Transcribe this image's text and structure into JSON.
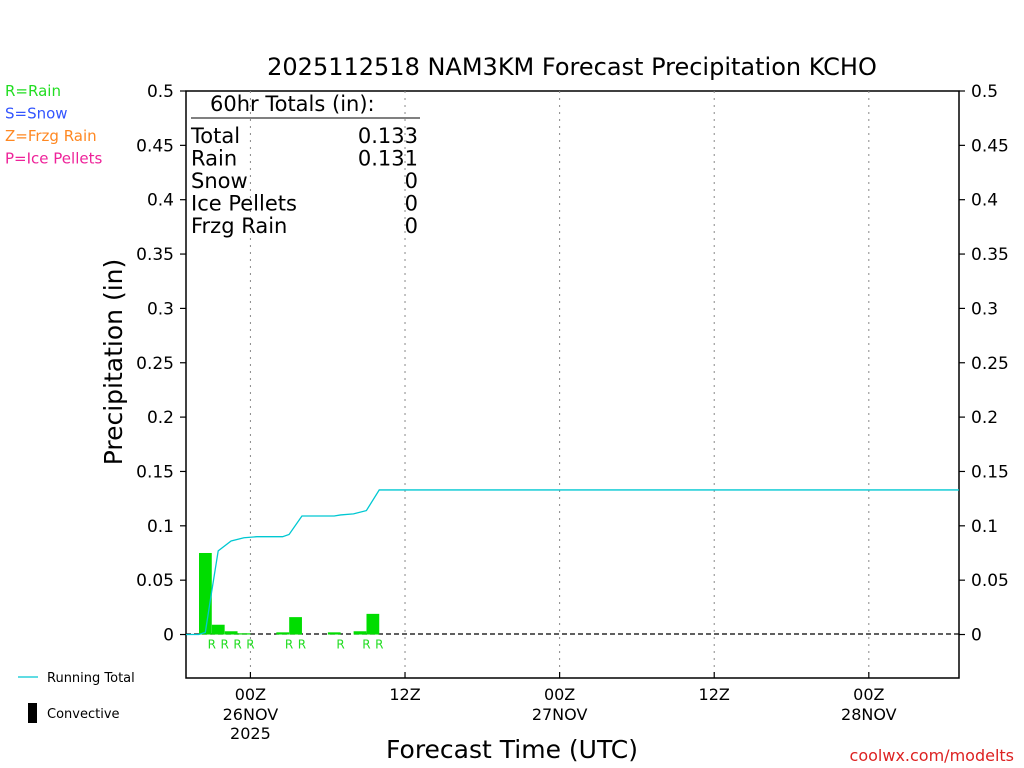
{
  "chart_data": {
    "type": "bar",
    "title": "2025112518 NAM3KM Forecast Precipitation KCHO",
    "xlabel": "Forecast Time (UTC)",
    "ylabel": "Precipitation (in)",
    "ylim": [
      -0.04,
      0.5
    ],
    "xlim_hours": [
      -5.0,
      55.0
    ],
    "yticks": [
      {
        "value": 0.5,
        "label": "0.5"
      },
      {
        "value": 0.45,
        "label": "0.45"
      },
      {
        "value": 0.4,
        "label": "0.4"
      },
      {
        "value": 0.35,
        "label": "0.35"
      },
      {
        "value": 0.3,
        "label": "0.3"
      },
      {
        "value": 0.25,
        "label": "0.25"
      },
      {
        "value": 0.2,
        "label": "0.2"
      },
      {
        "value": 0.15,
        "label": "0.15"
      },
      {
        "value": 0.1,
        "label": "0.1"
      },
      {
        "value": 0.05,
        "label": "0.05"
      },
      {
        "value": 0,
        "label": "0"
      }
    ],
    "xticks": [
      {
        "hour": 0,
        "label": "00Z",
        "date": "26NOV",
        "year": "2025"
      },
      {
        "hour": 12,
        "label": "12Z",
        "date": "",
        "year": ""
      },
      {
        "hour": 24,
        "label": "00Z",
        "date": "27NOV",
        "year": ""
      },
      {
        "hour": 36,
        "label": "12Z",
        "date": "",
        "year": ""
      },
      {
        "hour": 48,
        "label": "00Z",
        "date": "28NOV",
        "year": ""
      }
    ],
    "bars": [
      {
        "hour": -3,
        "value": 0.075,
        "type_label": "R"
      },
      {
        "hour": -2,
        "value": 0.009,
        "type_label": "R"
      },
      {
        "hour": -1,
        "value": 0.003,
        "type_label": "R"
      },
      {
        "hour": 0,
        "value": 0.0005,
        "type_label": "R"
      },
      {
        "hour": 3,
        "value": 0.002,
        "type_label": "R"
      },
      {
        "hour": 4,
        "value": 0.016,
        "type_label": "R"
      },
      {
        "hour": 7,
        "value": 0.002,
        "type_label": "R"
      },
      {
        "hour": 9,
        "value": 0.003,
        "type_label": "R"
      },
      {
        "hour": 10,
        "value": 0.019,
        "type_label": "R"
      }
    ],
    "running_total": {
      "name": "Running Total",
      "color": "#00c8d2",
      "points": [
        [
          -5,
          0
        ],
        [
          -4,
          0.0
        ],
        [
          -3.5,
          0.002
        ],
        [
          -3,
          0.04
        ],
        [
          -2.5,
          0.077
        ],
        [
          -1.5,
          0.086
        ],
        [
          -0.5,
          0.089
        ],
        [
          0.5,
          0.09
        ],
        [
          1.5,
          0.09
        ],
        [
          2.5,
          0.09
        ],
        [
          3,
          0.092
        ],
        [
          4,
          0.109
        ],
        [
          6.5,
          0.109
        ],
        [
          7,
          0.11
        ],
        [
          8,
          0.111
        ],
        [
          9,
          0.114
        ],
        [
          10,
          0.133
        ],
        [
          55,
          0.133
        ]
      ]
    },
    "totals_box": {
      "header": "60hr Totals (in):",
      "rows": [
        {
          "label": "Total",
          "value": "0.133"
        },
        {
          "label": "Rain",
          "value": "0.131"
        },
        {
          "label": "Snow",
          "value": "0"
        },
        {
          "label": "Ice Pellets",
          "value": "0"
        },
        {
          "label": "Frzg Rain",
          "value": "0"
        }
      ]
    },
    "precip_legend": [
      {
        "text": "R=Rain",
        "color": "#22dd22"
      },
      {
        "text": "S=Snow",
        "color": "#3355ff"
      },
      {
        "text": "Z=Frzg Rain",
        "color": "#ff8822"
      },
      {
        "text": "P=Ice Pellets",
        "color": "#ee2299"
      }
    ],
    "bottom_legend": [
      {
        "text": "Running Total",
        "color": "#00c8d2"
      },
      {
        "text": "Convective",
        "color": "#000000"
      }
    ],
    "bar_color": "#00dd00",
    "footer": "coolwx.com/modelts",
    "footer_color": "#dd2222"
  }
}
